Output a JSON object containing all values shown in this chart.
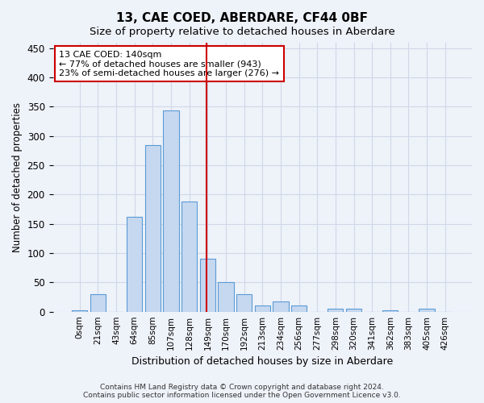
{
  "title": "13, CAE COED, ABERDARE, CF44 0BF",
  "subtitle": "Size of property relative to detached houses in Aberdare",
  "xlabel": "Distribution of detached houses by size in Aberdare",
  "ylabel": "Number of detached properties",
  "footer_line1": "Contains HM Land Registry data © Crown copyright and database right 2024.",
  "footer_line2": "Contains public sector information licensed under the Open Government Licence v3.0.",
  "bar_labels": [
    "0sqm",
    "21sqm",
    "43sqm",
    "64sqm",
    "85sqm",
    "107sqm",
    "128sqm",
    "149sqm",
    "170sqm",
    "192sqm",
    "213sqm",
    "234sqm",
    "256sqm",
    "277sqm",
    "298sqm",
    "320sqm",
    "341sqm",
    "362sqm",
    "383sqm",
    "405sqm",
    "426sqm"
  ],
  "bar_values": [
    3,
    30,
    0,
    162,
    284,
    344,
    188,
    90,
    50,
    30,
    11,
    17,
    10,
    0,
    5,
    5,
    0,
    3,
    0,
    5,
    0
  ],
  "bar_color": "#c5d8f0",
  "bar_edge_color": "#5b9bd5",
  "grid_color": "#d0d8e8",
  "background_color": "#eef2f9",
  "vline_pos": 6.925,
  "vline_color": "#cc0000",
  "annotation_text": "13 CAE COED: 140sqm\n← 77% of detached houses are smaller (943)\n23% of semi-detached houses are larger (276) →",
  "annotation_box_color": "#ffffff",
  "annotation_box_edge_color": "#cc0000",
  "ylim": [
    0,
    460
  ],
  "yticks": [
    0,
    50,
    100,
    150,
    200,
    250,
    300,
    350,
    400,
    450
  ]
}
